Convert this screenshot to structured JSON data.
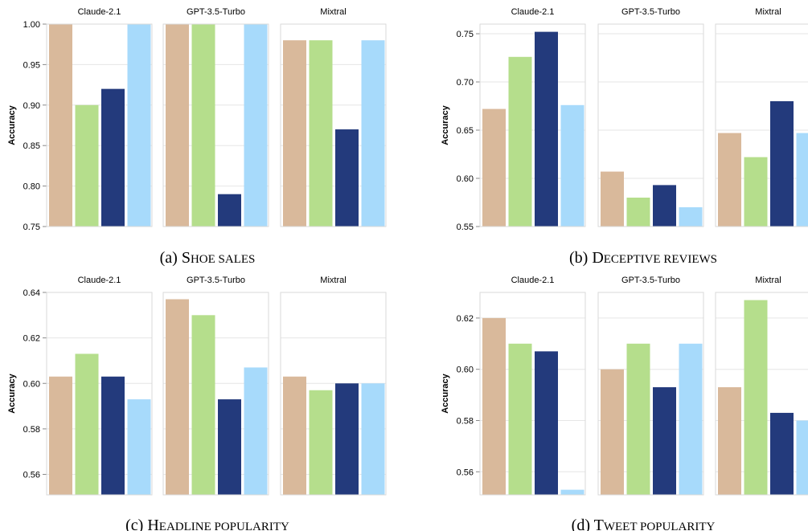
{
  "colors": [
    "#d9b99b",
    "#b5de8c",
    "#233a7c",
    "#a7dafb"
  ],
  "ylabel": "Accuracy",
  "chart_data": [
    {
      "type": "bar",
      "caption_label": "(a)",
      "caption_big": "S",
      "caption_rest": "HOE SALES",
      "ylabel": "Accuracy",
      "ylim": [
        0.75,
        1.0
      ],
      "yticks": [
        "0.75",
        "0.80",
        "0.85",
        "0.90",
        "0.95",
        "1.00"
      ],
      "facets": [
        {
          "name": "Claude-2.1",
          "values": [
            1.0,
            0.9,
            0.92,
            1.0
          ]
        },
        {
          "name": "GPT-3.5-Turbo",
          "values": [
            1.0,
            1.0,
            0.79,
            1.0
          ]
        },
        {
          "name": "Mixtral",
          "values": [
            0.98,
            0.98,
            0.87,
            0.98
          ]
        }
      ]
    },
    {
      "type": "bar",
      "caption_label": "(b)",
      "caption_big": "D",
      "caption_rest": "ECEPTIVE REVIEWS",
      "ylabel": "Accuracy",
      "ylim": [
        0.55,
        0.76
      ],
      "yticks": [
        "0.55",
        "0.60",
        "0.65",
        "0.70",
        "0.75"
      ],
      "facets": [
        {
          "name": "Claude-2.1",
          "values": [
            0.672,
            0.726,
            0.752,
            0.676
          ]
        },
        {
          "name": "GPT-3.5-Turbo",
          "values": [
            0.607,
            0.58,
            0.593,
            0.57
          ]
        },
        {
          "name": "Mixtral",
          "values": [
            0.647,
            0.622,
            0.68,
            0.647
          ]
        }
      ]
    },
    {
      "type": "bar",
      "caption_label": "(c)",
      "caption_big": "H",
      "caption_rest": "EADLINE POPULARITY",
      "ylabel": "Accuracy",
      "ylim": [
        0.551,
        0.64
      ],
      "yticks": [
        "0.56",
        "0.58",
        "0.60",
        "0.62",
        "0.64"
      ],
      "facets": [
        {
          "name": "Claude-2.1",
          "values": [
            0.603,
            0.613,
            0.603,
            0.593
          ]
        },
        {
          "name": "GPT-3.5-Turbo",
          "values": [
            0.637,
            0.63,
            0.593,
            0.607
          ]
        },
        {
          "name": "Mixtral",
          "values": [
            0.603,
            0.597,
            0.6,
            0.6
          ]
        }
      ]
    },
    {
      "type": "bar",
      "caption_label": "(d)",
      "caption_big": "T",
      "caption_rest": "WEET POPULARITY",
      "ylabel": "Accuracy",
      "ylim": [
        0.551,
        0.63
      ],
      "yticks": [
        "0.56",
        "0.58",
        "0.60",
        "0.62"
      ],
      "facets": [
        {
          "name": "Claude-2.1",
          "values": [
            0.62,
            0.61,
            0.607,
            0.553
          ]
        },
        {
          "name": "GPT-3.5-Turbo",
          "values": [
            0.6,
            0.61,
            0.593,
            0.61
          ]
        },
        {
          "name": "Mixtral",
          "values": [
            0.593,
            0.627,
            0.583,
            0.58
          ]
        }
      ]
    }
  ]
}
